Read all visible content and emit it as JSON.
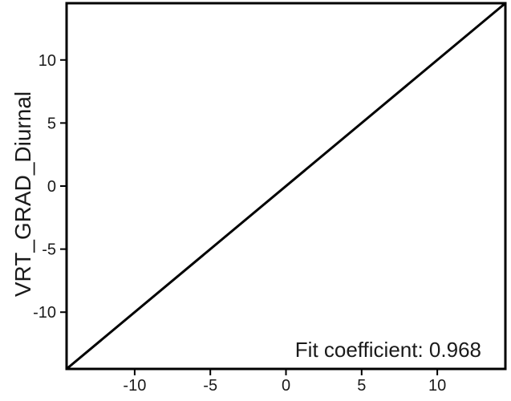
{
  "chart_data": {
    "type": "line",
    "title": "",
    "xlabel": "",
    "ylabel": "VRT_GRAD_Diurnal",
    "xlim": [
      -14.5,
      14.5
    ],
    "ylim": [
      -14.5,
      14.5
    ],
    "xticks": [
      -10,
      -5,
      0,
      5,
      10
    ],
    "yticks": [
      -10,
      -5,
      0,
      5,
      10
    ],
    "xtick_labels": [
      "-10",
      "-5",
      "0",
      "5",
      "10"
    ],
    "ytick_labels": [
      "-10",
      "-5",
      "0",
      "5",
      "10"
    ],
    "grid": false,
    "series": [
      {
        "x": [
          -14.5,
          14.5
        ],
        "y": [
          -14.5,
          14.5
        ]
      }
    ],
    "annotation": "Fit coefficient: 0.968"
  }
}
